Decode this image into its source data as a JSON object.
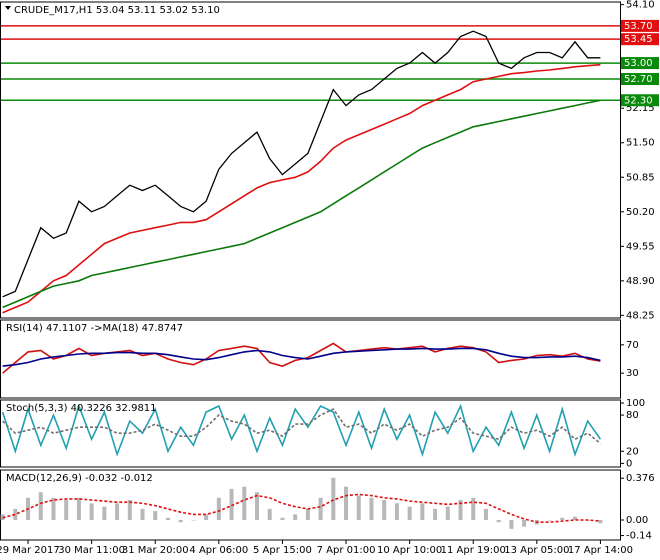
{
  "chart_data": [
    {
      "type": "line",
      "title": "CRUDE_M17,H1  53.04 53.11 53.02 53.10",
      "categories": [
        null,
        null,
        "29 Mar 2017",
        null,
        null,
        null,
        null,
        "30 Mar 11:00",
        null,
        null,
        null,
        null,
        "31 Mar 20:00",
        null,
        null,
        null,
        null,
        "4 Apr 06:00",
        null,
        null,
        null,
        null,
        "5 Apr 15:00",
        null,
        null,
        null,
        null,
        "7 Apr 01:00",
        null,
        null,
        null,
        null,
        "10 Apr 10:00",
        null,
        null,
        null,
        null,
        "11 Apr 19:00",
        null,
        null,
        null,
        null,
        "13 Apr 05:00",
        null,
        null,
        null,
        null,
        "17 Apr 14:00"
      ],
      "ylim": [
        48.2,
        54.15
      ],
      "yticks": [
        {
          "value": 54.1,
          "label": "54.10"
        },
        52.15,
        {
          "value": 51.5,
          "label": "51.50"
        },
        50.85,
        {
          "value": 50.2,
          "label": "50.20"
        },
        49.55,
        {
          "value": 48.9,
          "label": "48.90"
        },
        48.25
      ],
      "levels": [
        {
          "value": 53.7,
          "label": "53.70",
          "color": "#e01010"
        },
        {
          "value": 53.45,
          "label": "53.45",
          "color": "#e01010"
        },
        {
          "value": 53,
          "label": "53.00",
          "color": "#0a8a0a"
        },
        {
          "value": 52.7,
          "label": "52.70",
          "color": "#0a8a0a"
        },
        {
          "value": 52.3,
          "label": "52.30",
          "color": "#0a8a0a"
        }
      ],
      "series": [
        {
          "color": "#000000",
          "style": "line",
          "values": [
            48.6,
            48.7,
            49.3,
            49.9,
            49.7,
            49.8,
            50.4,
            50.2,
            50.3,
            50.5,
            50.7,
            50.6,
            50.7,
            50.5,
            50.3,
            50.2,
            50.4,
            51.0,
            51.3,
            51.5,
            51.7,
            51.2,
            50.9,
            51.1,
            51.3,
            51.9,
            52.5,
            52.2,
            52.4,
            52.5,
            52.7,
            52.9,
            53.0,
            53.2,
            53.0,
            53.2,
            53.5,
            53.6,
            53.5,
            53.0,
            52.9,
            53.1,
            53.2,
            53.2,
            53.1,
            53.4,
            53.1,
            53.1
          ]
        },
        {
          "color": "#e01010",
          "style": "line",
          "values": [
            48.3,
            48.4,
            48.5,
            48.7,
            48.9,
            49.0,
            49.2,
            49.4,
            49.6,
            49.7,
            49.8,
            49.85,
            49.9,
            49.95,
            50.0,
            50.0,
            50.05,
            50.2,
            50.35,
            50.5,
            50.65,
            50.75,
            50.8,
            50.85,
            50.95,
            51.15,
            51.4,
            51.55,
            51.65,
            51.75,
            51.85,
            51.95,
            52.05,
            52.2,
            52.3,
            52.4,
            52.5,
            52.65,
            52.7,
            52.75,
            52.8,
            52.82,
            52.85,
            52.87,
            52.9,
            52.93,
            52.95,
            52.97
          ]
        },
        {
          "color": "#0a7a0a",
          "style": "line",
          "values": [
            48.4,
            48.5,
            48.6,
            48.7,
            48.8,
            48.85,
            48.9,
            49.0,
            49.05,
            49.1,
            49.15,
            49.2,
            49.25,
            49.3,
            49.35,
            49.4,
            49.45,
            49.5,
            49.55,
            49.6,
            49.7,
            49.8,
            49.9,
            50.0,
            50.1,
            50.2,
            50.35,
            50.5,
            50.65,
            50.8,
            50.95,
            51.1,
            51.25,
            51.4,
            51.5,
            51.6,
            51.7,
            51.8,
            51.85,
            51.9,
            51.95,
            52.0,
            52.05,
            52.1,
            52.15,
            52.2,
            52.25,
            52.3
          ]
        }
      ]
    },
    {
      "type": "line",
      "title": "RSI(14) 47.1107  ->MA(18) 47.8747",
      "ylim": [
        -5,
        105
      ],
      "yticks": [
        70,
        30
      ],
      "series": [
        {
          "color": "#d01010",
          "style": "line",
          "values": [
            30,
            45,
            60,
            62,
            50,
            55,
            65,
            55,
            58,
            60,
            62,
            55,
            58,
            50,
            45,
            42,
            50,
            62,
            65,
            68,
            65,
            45,
            40,
            48,
            52,
            62,
            72,
            60,
            62,
            64,
            66,
            64,
            66,
            68,
            60,
            65,
            68,
            66,
            60,
            45,
            48,
            50,
            55,
            56,
            54,
            58,
            50,
            47
          ]
        },
        {
          "color": "#00008b",
          "style": "line",
          "values": [
            40,
            42,
            45,
            50,
            53,
            55,
            57,
            58,
            58,
            59,
            59,
            58,
            58,
            56,
            53,
            50,
            49,
            52,
            56,
            60,
            62,
            60,
            55,
            52,
            50,
            54,
            58,
            60,
            61,
            62,
            63,
            64,
            64,
            65,
            64,
            64,
            65,
            65,
            63,
            58,
            54,
            52,
            52,
            53,
            53,
            54,
            52,
            48
          ]
        }
      ]
    },
    {
      "type": "line",
      "title": "Stoch(5,3,3) 40.3226 32.9811",
      "ylim": [
        -6,
        105
      ],
      "yticks": [
        100,
        80,
        20,
        0
      ],
      "series": [
        {
          "color": "#20a0b0",
          "style": "line",
          "values": [
            85,
            20,
            90,
            30,
            80,
            25,
            95,
            40,
            85,
            15,
            70,
            50,
            90,
            20,
            60,
            30,
            85,
            95,
            40,
            80,
            20,
            75,
            30,
            90,
            60,
            95,
            85,
            30,
            85,
            25,
            90,
            40,
            80,
            15,
            85,
            50,
            95,
            20,
            60,
            30,
            85,
            25,
            80,
            20,
            90,
            15,
            70,
            40
          ]
        },
        {
          "color": "#707070",
          "style": "dashed",
          "values": [
            70,
            50,
            55,
            60,
            50,
            55,
            60,
            60,
            60,
            50,
            50,
            55,
            65,
            55,
            45,
            45,
            60,
            80,
            70,
            65,
            50,
            55,
            45,
            65,
            65,
            80,
            90,
            60,
            65,
            50,
            65,
            55,
            65,
            45,
            55,
            60,
            75,
            50,
            45,
            40,
            60,
            50,
            55,
            45,
            60,
            40,
            50,
            33
          ]
        }
      ]
    },
    {
      "type": "bar",
      "title": "MACD(12,26,9) -0.032 -0.012",
      "ylim": [
        -0.18,
        0.45
      ],
      "yticks": [
        0.376,
        {
          "value": 0,
          "label": "0.00"
        },
        -0.14
      ],
      "series": [
        {
          "color": "#b8b8b8",
          "style": "bar",
          "values": [
            0.05,
            0.1,
            0.2,
            0.25,
            0.2,
            0.18,
            0.2,
            0.15,
            0.12,
            0.15,
            0.18,
            0.1,
            0.08,
            0.02,
            -0.02,
            0.0,
            0.05,
            0.2,
            0.28,
            0.3,
            0.25,
            0.1,
            0.02,
            0.05,
            0.1,
            0.2,
            0.38,
            0.3,
            0.22,
            0.2,
            0.18,
            0.15,
            0.12,
            0.15,
            0.1,
            0.12,
            0.18,
            0.2,
            0.1,
            -0.02,
            -0.08,
            -0.06,
            -0.04,
            0.0,
            0.02,
            0.03,
            0.0,
            -0.03
          ]
        },
        {
          "color": "#e01010",
          "style": "dashed",
          "values": [
            0.02,
            0.05,
            0.1,
            0.15,
            0.18,
            0.19,
            0.19,
            0.18,
            0.17,
            0.16,
            0.16,
            0.15,
            0.13,
            0.1,
            0.07,
            0.05,
            0.05,
            0.08,
            0.13,
            0.18,
            0.22,
            0.2,
            0.15,
            0.12,
            0.1,
            0.12,
            0.18,
            0.22,
            0.23,
            0.22,
            0.2,
            0.19,
            0.17,
            0.16,
            0.15,
            0.14,
            0.15,
            0.16,
            0.15,
            0.1,
            0.05,
            0.01,
            -0.02,
            -0.02,
            -0.01,
            0.0,
            0.0,
            -0.01
          ]
        }
      ]
    }
  ]
}
